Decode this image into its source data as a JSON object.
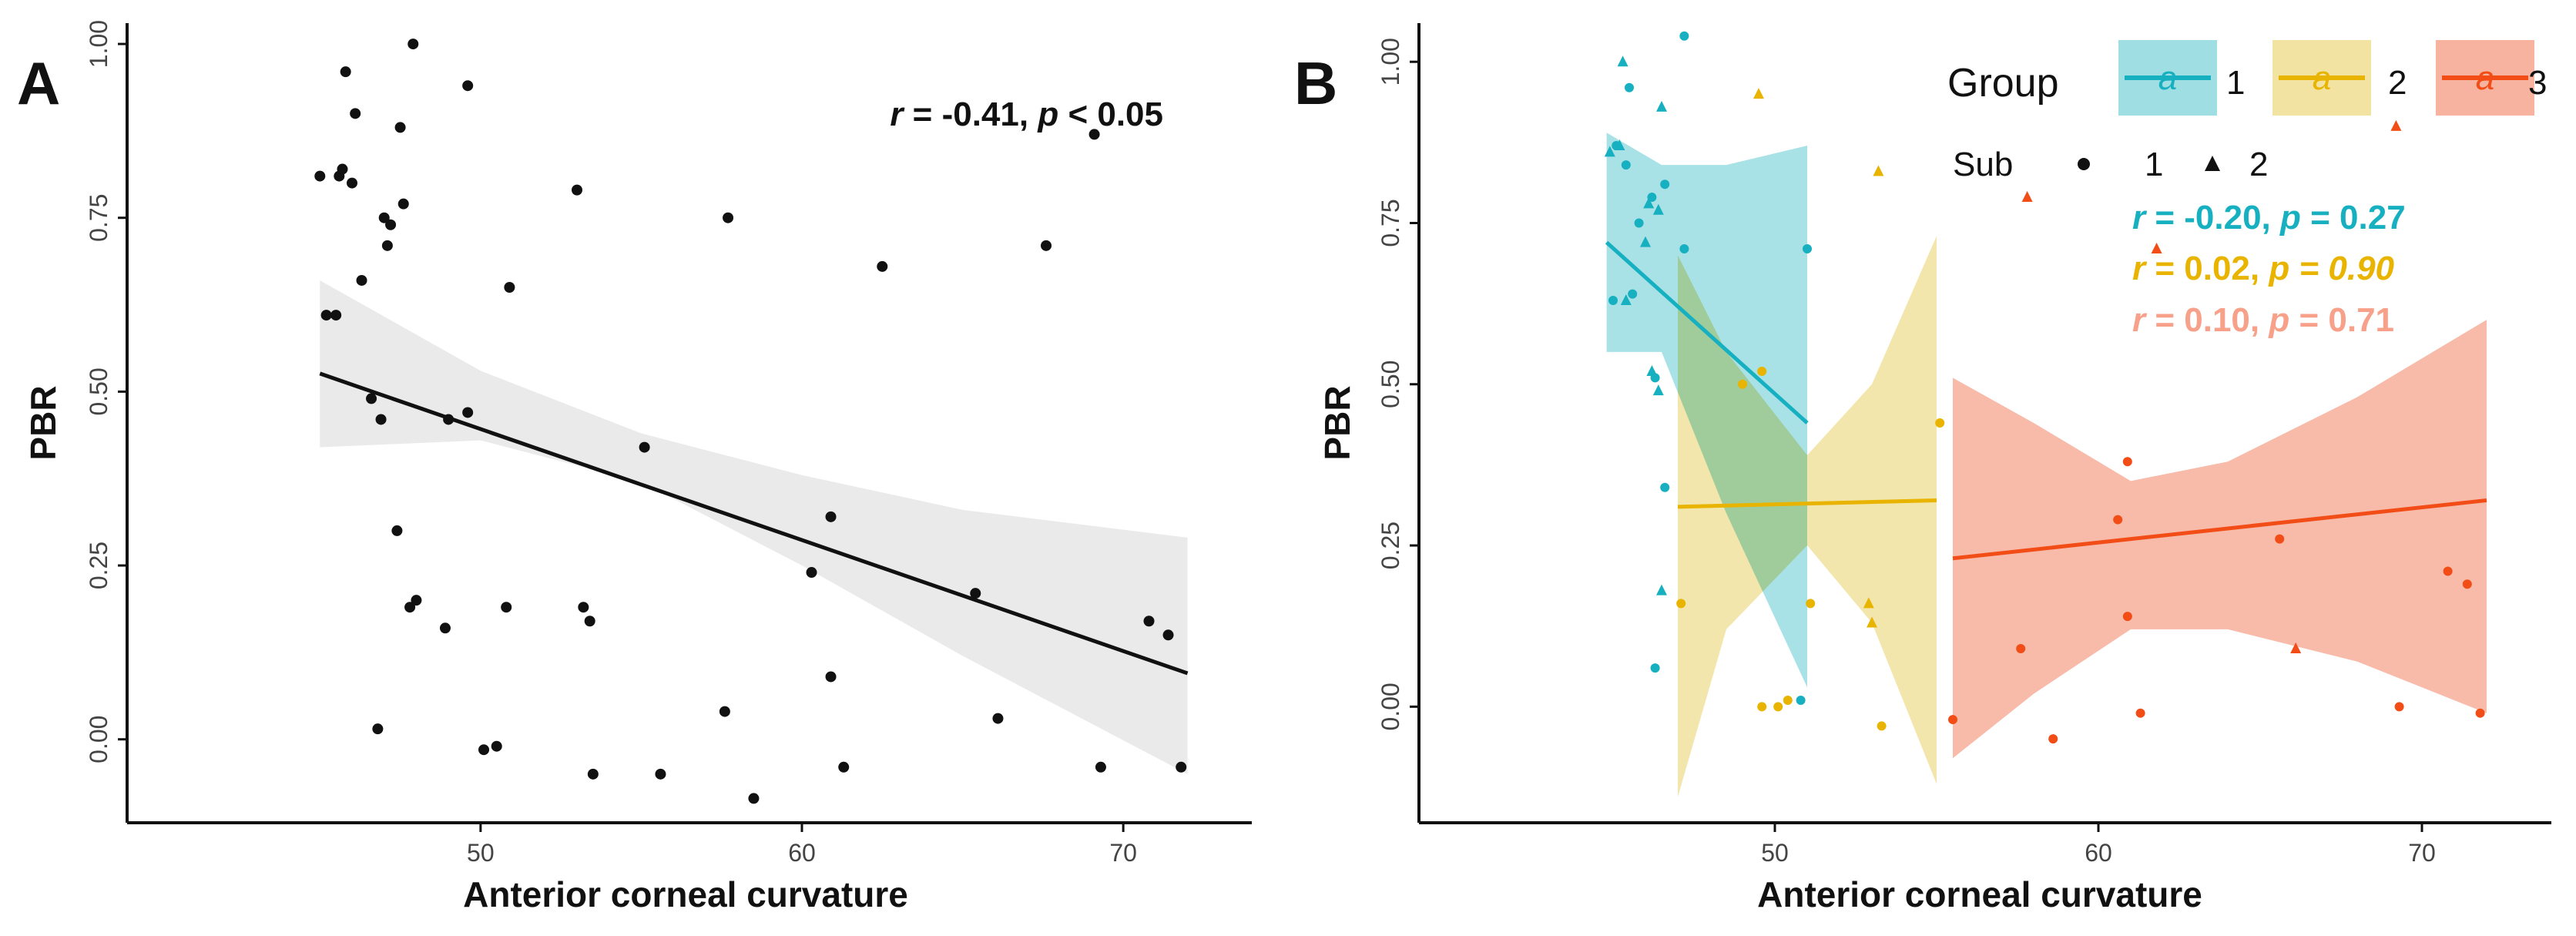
{
  "chart_data": [
    {
      "panel": "A",
      "type": "scatter",
      "xlabel": "Anterior corneal curvature",
      "ylabel": "PBR",
      "xlim": [
        39,
        74
      ],
      "ylim": [
        -0.12,
        1.03
      ],
      "xticks": [
        50,
        60,
        70
      ],
      "yticks": [
        0.0,
        0.25,
        0.5,
        0.75,
        1.0
      ],
      "xtick_labels": [
        "50",
        "60",
        "70"
      ],
      "ytick_labels": [
        "0.00",
        "0.25",
        "0.50",
        "0.75",
        "1.00"
      ],
      "annotation": {
        "r_sym": "r",
        "r_text": " = -0.41, ",
        "p_sym": "p",
        "p_text": " < 0.05"
      },
      "fit": {
        "x": [
          45,
          72
        ],
        "y": [
          0.526,
          0.095
        ]
      },
      "band": {
        "x": [
          45,
          50,
          55,
          60,
          65,
          72
        ],
        "lower": [
          0.42,
          0.43,
          0.37,
          0.25,
          0.12,
          -0.05
        ],
        "upper": [
          0.66,
          0.53,
          0.44,
          0.38,
          0.33,
          0.29
        ]
      },
      "points": [
        {
          "x": 45.0,
          "y": 0.81
        },
        {
          "x": 45.2,
          "y": 0.61
        },
        {
          "x": 45.5,
          "y": 0.61
        },
        {
          "x": 45.6,
          "y": 0.81
        },
        {
          "x": 45.7,
          "y": 0.82
        },
        {
          "x": 45.8,
          "y": 0.96
        },
        {
          "x": 46.0,
          "y": 0.8
        },
        {
          "x": 46.1,
          "y": 0.9
        },
        {
          "x": 46.3,
          "y": 0.66
        },
        {
          "x": 46.6,
          "y": 0.49
        },
        {
          "x": 46.9,
          "y": 0.46
        },
        {
          "x": 47.0,
          "y": 0.75
        },
        {
          "x": 47.1,
          "y": 0.71
        },
        {
          "x": 47.2,
          "y": 0.74
        },
        {
          "x": 47.4,
          "y": 0.3
        },
        {
          "x": 47.5,
          "y": 0.88
        },
        {
          "x": 47.6,
          "y": 0.77
        },
        {
          "x": 47.8,
          "y": 0.19
        },
        {
          "x": 48.0,
          "y": 0.2
        },
        {
          "x": 47.9,
          "y": 1.0
        },
        {
          "x": 46.8,
          "y": 0.015
        },
        {
          "x": 49.0,
          "y": 0.46
        },
        {
          "x": 48.9,
          "y": 0.16
        },
        {
          "x": 49.6,
          "y": 0.47
        },
        {
          "x": 49.6,
          "y": 0.94
        },
        {
          "x": 50.1,
          "y": -0.015
        },
        {
          "x": 50.5,
          "y": -0.01
        },
        {
          "x": 50.8,
          "y": 0.19
        },
        {
          "x": 50.9,
          "y": 0.65
        },
        {
          "x": 53.0,
          "y": 0.79
        },
        {
          "x": 53.2,
          "y": 0.19
        },
        {
          "x": 53.4,
          "y": 0.17
        },
        {
          "x": 53.5,
          "y": -0.05
        },
        {
          "x": 55.1,
          "y": 0.42
        },
        {
          "x": 55.6,
          "y": -0.05
        },
        {
          "x": 57.6,
          "y": 0.04
        },
        {
          "x": 57.7,
          "y": 0.75
        },
        {
          "x": 58.5,
          "y": -0.085
        },
        {
          "x": 60.3,
          "y": 0.24
        },
        {
          "x": 60.9,
          "y": 0.32
        },
        {
          "x": 60.9,
          "y": 0.09
        },
        {
          "x": 61.3,
          "y": -0.04
        },
        {
          "x": 62.5,
          "y": 0.68
        },
        {
          "x": 65.4,
          "y": 0.21
        },
        {
          "x": 66.1,
          "y": 0.03
        },
        {
          "x": 67.6,
          "y": 0.71
        },
        {
          "x": 69.1,
          "y": 0.87
        },
        {
          "x": 69.3,
          "y": -0.04
        },
        {
          "x": 70.8,
          "y": 0.17
        },
        {
          "x": 71.4,
          "y": 0.15
        },
        {
          "x": 71.8,
          "y": -0.04
        }
      ]
    },
    {
      "panel": "B",
      "type": "scatter",
      "xlabel": "Anterior corneal curvature",
      "ylabel": "PBR",
      "xlim": [
        39,
        74
      ],
      "ylim": [
        -0.18,
        1.06
      ],
      "xticks": [
        50,
        60,
        70
      ],
      "yticks": [
        0.0,
        0.25,
        0.5,
        0.75,
        1.0
      ],
      "xtick_labels": [
        "50",
        "60",
        "70"
      ],
      "ytick_labels": [
        "0.00",
        "0.25",
        "0.50",
        "0.75",
        "1.00"
      ],
      "legend": {
        "group_title": "Group",
        "group_labels": [
          "1",
          "2",
          "3"
        ],
        "key_glyph": "a",
        "sub_title": "Sub",
        "sub_labels": [
          "1",
          "2"
        ],
        "placement": "top-right"
      },
      "series": [
        {
          "name": "1",
          "color": "#17b0c0",
          "band_color": "#9fdfe4",
          "stat": {
            "r_sym": "r",
            "r_text": " = -0.20, ",
            "p_sym": "p",
            "p_text": " = 0.27"
          },
          "fit": {
            "x": [
              44.8,
              51.0
            ],
            "y": [
              0.72,
              0.44
            ]
          },
          "band": {
            "x": [
              44.8,
              46.5,
              48.5,
              51.0
            ],
            "lower": [
              0.55,
              0.55,
              0.3,
              0.03
            ],
            "upper": [
              0.89,
              0.84,
              0.84,
              0.87
            ]
          },
          "points": [
            {
              "x": 44.9,
              "y": 0.86,
              "sub": 2
            },
            {
              "x": 45.0,
              "y": 0.63,
              "sub": 1
            },
            {
              "x": 45.1,
              "y": 0.87,
              "sub": 1
            },
            {
              "x": 45.2,
              "y": 0.87,
              "sub": 2
            },
            {
              "x": 45.4,
              "y": 0.84,
              "sub": 1
            },
            {
              "x": 45.3,
              "y": 1.0,
              "sub": 2
            },
            {
              "x": 45.5,
              "y": 0.96,
              "sub": 1
            },
            {
              "x": 45.4,
              "y": 0.63,
              "sub": 2
            },
            {
              "x": 45.6,
              "y": 0.64,
              "sub": 1
            },
            {
              "x": 45.8,
              "y": 0.75,
              "sub": 1
            },
            {
              "x": 46.0,
              "y": 0.72,
              "sub": 2
            },
            {
              "x": 46.1,
              "y": 0.78,
              "sub": 2
            },
            {
              "x": 46.2,
              "y": 0.79,
              "sub": 1
            },
            {
              "x": 46.4,
              "y": 0.77,
              "sub": 2
            },
            {
              "x": 46.5,
              "y": 0.93,
              "sub": 2
            },
            {
              "x": 46.6,
              "y": 0.81,
              "sub": 1
            },
            {
              "x": 46.2,
              "y": 0.52,
              "sub": 2
            },
            {
              "x": 46.3,
              "y": 0.51,
              "sub": 1
            },
            {
              "x": 46.4,
              "y": 0.49,
              "sub": 2
            },
            {
              "x": 46.6,
              "y": 0.34,
              "sub": 1
            },
            {
              "x": 46.5,
              "y": 0.18,
              "sub": 2
            },
            {
              "x": 46.3,
              "y": 0.06,
              "sub": 1
            },
            {
              "x": 47.2,
              "y": 1.04,
              "sub": 1
            },
            {
              "x": 47.2,
              "y": 0.71,
              "sub": 1
            },
            {
              "x": 50.8,
              "y": 0.01,
              "sub": 1
            },
            {
              "x": 51.0,
              "y": 0.71,
              "sub": 1
            }
          ]
        },
        {
          "name": "2",
          "color": "#e8b400",
          "band_color": "#f2e3a3",
          "stat": {
            "r_sym": "r",
            "r_text": " = 0.02, ",
            "p_sym": "p",
            "p_text": " = 0.90"
          },
          "fit": {
            "x": [
              47.0,
              55.0
            ],
            "y": [
              0.31,
              0.32
            ]
          },
          "band": {
            "x": [
              47.0,
              48.5,
              51.0,
              53.0,
              55.0
            ],
            "lower": [
              -0.14,
              0.12,
              0.25,
              0.13,
              -0.12
            ],
            "upper": [
              0.7,
              0.55,
              0.39,
              0.5,
              0.73
            ]
          },
          "points": [
            {
              "x": 47.1,
              "y": 0.16,
              "sub": 1
            },
            {
              "x": 49.0,
              "y": 0.5,
              "sub": 1
            },
            {
              "x": 49.5,
              "y": 0.95,
              "sub": 2
            },
            {
              "x": 49.6,
              "y": 0.52,
              "sub": 1
            },
            {
              "x": 49.6,
              "y": 0.0,
              "sub": 1
            },
            {
              "x": 50.1,
              "y": 0.0,
              "sub": 1
            },
            {
              "x": 50.4,
              "y": 0.01,
              "sub": 1
            },
            {
              "x": 51.1,
              "y": 0.16,
              "sub": 1
            },
            {
              "x": 52.9,
              "y": 0.16,
              "sub": 2
            },
            {
              "x": 53.0,
              "y": 0.13,
              "sub": 2
            },
            {
              "x": 53.2,
              "y": 0.83,
              "sub": 2
            },
            {
              "x": 53.3,
              "y": -0.03,
              "sub": 1
            },
            {
              "x": 55.1,
              "y": 0.44,
              "sub": 1
            }
          ]
        },
        {
          "name": "3",
          "color": "#f24d17",
          "band_color": "#f7b3a0",
          "stat": {
            "r_sym": "r",
            "r_text": " = 0.10, ",
            "p_sym": "p",
            "p_text": " = 0.71"
          },
          "fit": {
            "x": [
              55.5,
              72.0
            ],
            "y": [
              0.23,
              0.32
            ]
          },
          "band": {
            "x": [
              55.5,
              58,
              61,
              64,
              68,
              72
            ],
            "lower": [
              -0.08,
              0.02,
              0.12,
              0.12,
              0.07,
              -0.01
            ],
            "upper": [
              0.51,
              0.44,
              0.35,
              0.38,
              0.48,
              0.6
            ]
          },
          "points": [
            {
              "x": 55.5,
              "y": -0.02,
              "sub": 1
            },
            {
              "x": 57.6,
              "y": 0.09,
              "sub": 1
            },
            {
              "x": 57.8,
              "y": 0.79,
              "sub": 2
            },
            {
              "x": 58.6,
              "y": -0.05,
              "sub": 1
            },
            {
              "x": 60.6,
              "y": 0.29,
              "sub": 1
            },
            {
              "x": 60.9,
              "y": 0.14,
              "sub": 1
            },
            {
              "x": 60.9,
              "y": 0.38,
              "sub": 1
            },
            {
              "x": 61.3,
              "y": -0.01,
              "sub": 1
            },
            {
              "x": 61.8,
              "y": 0.71,
              "sub": 2
            },
            {
              "x": 65.6,
              "y": 0.26,
              "sub": 1
            },
            {
              "x": 66.1,
              "y": 0.09,
              "sub": 2
            },
            {
              "x": 69.2,
              "y": 0.9,
              "sub": 2
            },
            {
              "x": 69.3,
              "y": 0.0,
              "sub": 1
            },
            {
              "x": 70.8,
              "y": 0.21,
              "sub": 1
            },
            {
              "x": 71.4,
              "y": 0.19,
              "sub": 1
            },
            {
              "x": 71.8,
              "y": -0.01,
              "sub": 1
            }
          ]
        }
      ]
    }
  ]
}
